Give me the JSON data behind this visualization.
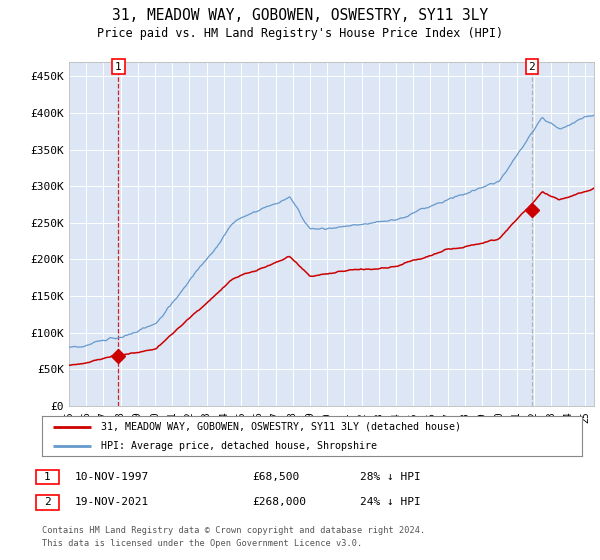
{
  "title": "31, MEADOW WAY, GOBOWEN, OSWESTRY, SY11 3LY",
  "subtitle": "Price paid vs. HM Land Registry's House Price Index (HPI)",
  "plot_bg_color": "#dce6f5",
  "fig_bg_color": "#ffffff",
  "ylim": [
    0,
    470000
  ],
  "yticks": [
    0,
    50000,
    100000,
    150000,
    200000,
    250000,
    300000,
    350000,
    400000,
    450000
  ],
  "ytick_labels": [
    "£0",
    "£50K",
    "£100K",
    "£150K",
    "£200K",
    "£250K",
    "£300K",
    "£350K",
    "£400K",
    "£450K"
  ],
  "sale1_date": 1997.87,
  "sale1_price": 68500,
  "sale2_date": 2021.88,
  "sale2_price": 268000,
  "red_line_color": "#cc0000",
  "blue_line_color": "#6699cc",
  "legend_label1": "31, MEADOW WAY, GOBOWEN, OSWESTRY, SY11 3LY (detached house)",
  "legend_label2": "HPI: Average price, detached house, Shropshire",
  "footnote1": "Contains HM Land Registry data © Crown copyright and database right 2024.",
  "footnote2": "This data is licensed under the Open Government Licence v3.0.",
  "table_row1": [
    "1",
    "10-NOV-1997",
    "£68,500",
    "28% ↓ HPI"
  ],
  "table_row2": [
    "2",
    "19-NOV-2021",
    "£268,000",
    "24% ↓ HPI"
  ],
  "xmin": 1995.0,
  "xmax": 2025.5
}
